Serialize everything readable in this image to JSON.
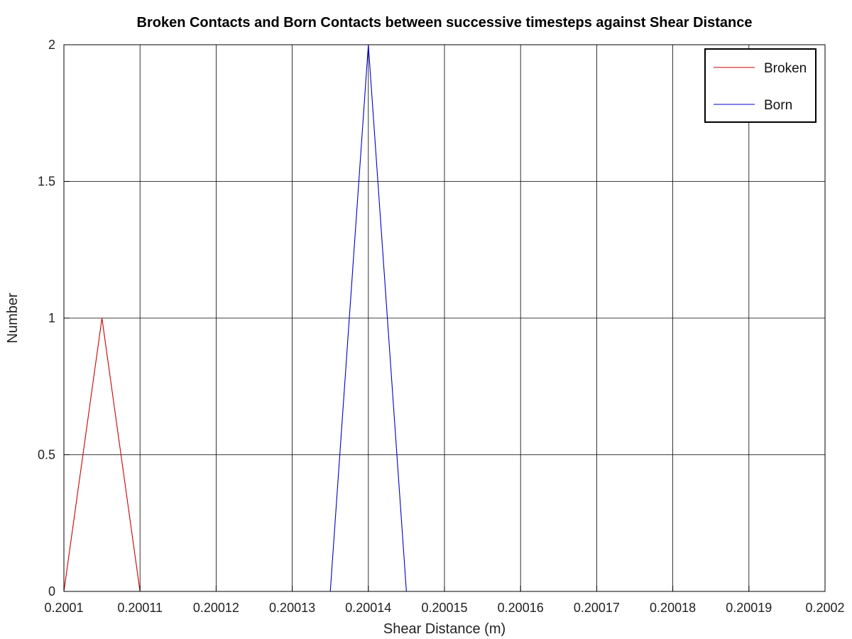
{
  "chart_data": {
    "type": "line",
    "title": "Broken Contacts and Born Contacts between successive timesteps against Shear Distance",
    "xlabel": "Shear Distance (m)",
    "ylabel": "Number",
    "xlim": [
      0.2001,
      0.2002
    ],
    "ylim": [
      0,
      2
    ],
    "x_ticks": [
      0.2001,
      0.20011,
      0.20012,
      0.20013,
      0.20014,
      0.20015,
      0.20016,
      0.20017,
      0.20018,
      0.20019,
      0.2002
    ],
    "x_tick_labels": [
      "0.2001",
      "0.20011",
      "0.20012",
      "0.20013",
      "0.20014",
      "0.20015",
      "0.20016",
      "0.20017",
      "0.20018",
      "0.20019",
      "0.2002"
    ],
    "y_ticks": [
      0,
      0.5,
      1,
      1.5,
      2
    ],
    "y_tick_labels": [
      "0",
      "0.5",
      "1",
      "1.5",
      "2"
    ],
    "grid": true,
    "legend_position": "top-right",
    "series": [
      {
        "name": "Broken",
        "color": "#cc0000",
        "x": [
          0.2001,
          0.200105,
          0.20011
        ],
        "y": [
          0,
          1,
          0
        ]
      },
      {
        "name": "Born",
        "color": "#0000cc",
        "x": [
          0.200135,
          0.20014,
          0.200145
        ],
        "y": [
          0,
          2,
          0
        ]
      }
    ]
  }
}
